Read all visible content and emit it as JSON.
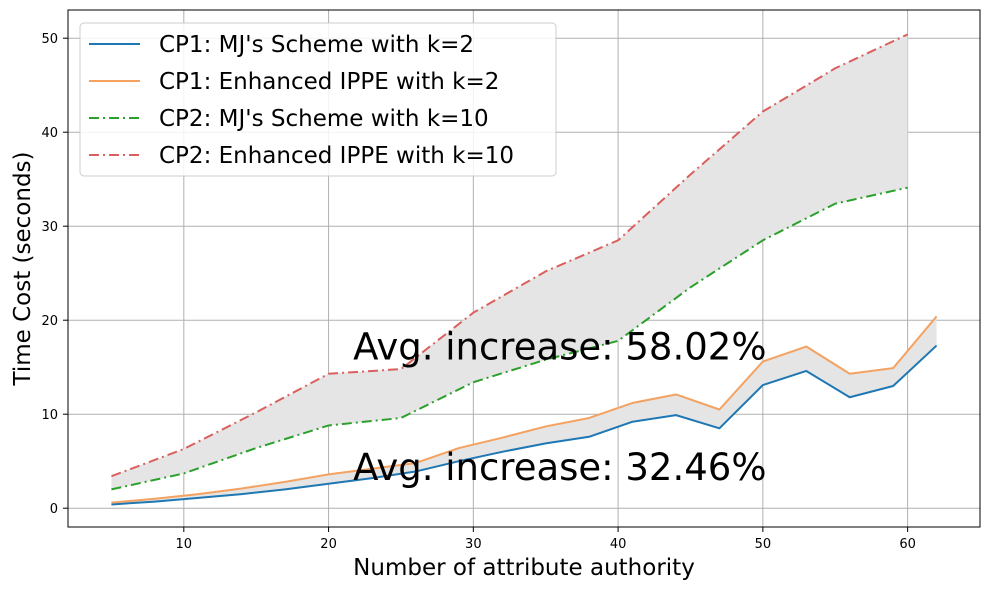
{
  "chart_data": {
    "type": "line",
    "title": "",
    "xlabel": "Number of attribute authority",
    "ylabel": "Time Cost (seconds)",
    "xlim": [
      2,
      65
    ],
    "ylim": [
      -2,
      53
    ],
    "xticks": [
      10,
      20,
      30,
      40,
      50,
      60
    ],
    "yticks": [
      0,
      10,
      20,
      30,
      40,
      50
    ],
    "grid": true,
    "legend_position": "top-left",
    "series": [
      {
        "name": "CP1: MJ's Scheme with k=2",
        "color": "#1f77b4",
        "style": "solid",
        "x": [
          5,
          8,
          11,
          14,
          17,
          20,
          23,
          26,
          29,
          32,
          35,
          38,
          41,
          44,
          47,
          50,
          53,
          56,
          59,
          62
        ],
        "y": [
          0.4,
          0.7,
          1.1,
          1.5,
          2.0,
          2.6,
          3.2,
          3.9,
          5.0,
          6.0,
          6.9,
          7.6,
          9.2,
          9.9,
          8.5,
          13.1,
          14.6,
          11.8,
          13.0,
          17.3
        ]
      },
      {
        "name": "CP1: Enhanced IPPE with k=2",
        "color": "#f4a261",
        "style": "solid",
        "x": [
          5,
          8,
          11,
          14,
          17,
          20,
          23,
          26,
          29,
          32,
          35,
          38,
          41,
          44,
          47,
          50,
          53,
          56,
          59,
          62
        ],
        "y": [
          0.6,
          1.0,
          1.5,
          2.1,
          2.8,
          3.6,
          4.2,
          4.8,
          6.4,
          7.5,
          8.7,
          9.6,
          11.2,
          12.1,
          10.5,
          15.6,
          17.2,
          14.3,
          14.9,
          20.4
        ]
      },
      {
        "name": "CP2: MJ's Scheme with k=10",
        "color": "#2ca02c",
        "style": "dashdot",
        "x": [
          5,
          10,
          15,
          20,
          25,
          30,
          35,
          40,
          45,
          50,
          55,
          60
        ],
        "y": [
          2.0,
          3.7,
          6.4,
          8.8,
          9.6,
          13.4,
          15.8,
          17.8,
          23.5,
          28.5,
          32.4,
          34.1
        ]
      },
      {
        "name": "CP2: Enhanced IPPE with k=10",
        "color": "#d9605e",
        "style": "dashdot",
        "x": [
          5,
          10,
          15,
          20,
          25,
          30,
          35,
          40,
          45,
          50,
          55,
          60
        ],
        "y": [
          3.4,
          6.3,
          10.2,
          14.3,
          14.8,
          20.8,
          25.2,
          28.5,
          35.5,
          42.2,
          46.8,
          50.4
        ]
      }
    ],
    "fills": [
      {
        "lower": 0,
        "upper": 1,
        "color": "#e5e5e5"
      },
      {
        "lower": 2,
        "upper": 3,
        "color": "#e5e5e5"
      }
    ],
    "annotations": [
      {
        "text": "Avg. increase: 58.02%",
        "x": 21.7,
        "y": 15.8
      },
      {
        "text": "Avg. increase: 32.46%",
        "x": 21.7,
        "y": 3.0
      }
    ]
  }
}
